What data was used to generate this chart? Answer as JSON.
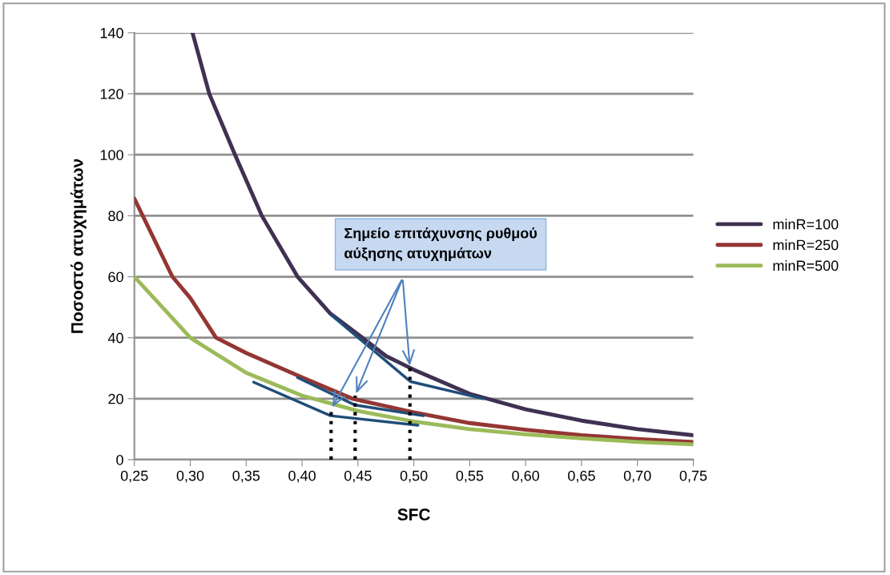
{
  "chart_data": {
    "type": "line",
    "xlabel": "SFC",
    "ylabel": "Ποσοστό ατυχημάτων",
    "xlim": [
      0.25,
      0.75
    ],
    "ylim": [
      0,
      140
    ],
    "xticks": [
      {
        "value": 0.25,
        "label": "0,25"
      },
      {
        "value": 0.3,
        "label": "0,30"
      },
      {
        "value": 0.35,
        "label": "0,35"
      },
      {
        "value": 0.4,
        "label": "0,40"
      },
      {
        "value": 0.45,
        "label": "0,45"
      },
      {
        "value": 0.5,
        "label": "0,50"
      },
      {
        "value": 0.55,
        "label": "0,55"
      },
      {
        "value": 0.6,
        "label": "0,60"
      },
      {
        "value": 0.65,
        "label": "0,65"
      },
      {
        "value": 0.7,
        "label": "0,70"
      },
      {
        "value": 0.75,
        "label": "0,75"
      }
    ],
    "yticks": [
      0,
      20,
      40,
      60,
      80,
      100,
      120,
      140
    ],
    "grid": "y",
    "legend": "right",
    "marker": "none",
    "line_style": "solid",
    "series": [
      {
        "name": "minR=100",
        "color": "#403152",
        "x": [
          0.302,
          0.317,
          0.34,
          0.364,
          0.396,
          0.425,
          0.454,
          0.475,
          0.5,
          0.55,
          0.6,
          0.65,
          0.7,
          0.75
        ],
        "values": [
          140,
          120,
          100,
          80,
          60,
          48,
          40,
          34,
          29.5,
          21.6,
          16.5,
          12.8,
          10,
          8
        ]
      },
      {
        "name": "minR=250",
        "color": "#943634",
        "x": [
          0.25,
          0.284,
          0.3,
          0.323,
          0.35,
          0.4,
          0.445,
          0.5,
          0.55,
          0.6,
          0.65,
          0.7,
          0.75
        ],
        "values": [
          85.6,
          60,
          53,
          40,
          35,
          27,
          20,
          15.5,
          12,
          9.8,
          8,
          6.8,
          5.8
        ]
      },
      {
        "name": "minR=500",
        "color": "#9bbb59",
        "x": [
          0.25,
          0.3,
          0.35,
          0.4,
          0.45,
          0.5,
          0.55,
          0.6,
          0.65,
          0.7,
          0.75
        ],
        "values": [
          60,
          40,
          28.5,
          21,
          16,
          12.5,
          10,
          8.3,
          7,
          5.8,
          5
        ]
      },
      {
        "color": "#1f4e79",
        "x": [
          0.426,
          0.497,
          0.562
        ],
        "values": [
          47.5,
          25.6,
          20
        ]
      },
      {
        "color": "#1f4e79",
        "x": [
          0.396,
          0.4475,
          0.5085
        ],
        "values": [
          26.9,
          17.9,
          14.4
        ]
      },
      {
        "color": "#1f4e79",
        "x": [
          0.3567,
          0.4255,
          0.5036
        ],
        "values": [
          25.4,
          14.4,
          11.3
        ]
      },
      {
        "color": "#000000",
        "line_style": "dotted",
        "x": [
          0.426,
          0.426
        ],
        "values": [
          0,
          16.5
        ]
      },
      {
        "color": "#000000",
        "line_style": "dotted",
        "x": [
          0.4475,
          0.4475
        ],
        "values": [
          0,
          21
        ]
      },
      {
        "color": "#000000",
        "line_style": "dotted",
        "x": [
          0.4965,
          0.4965
        ],
        "values": [
          0,
          30
        ]
      }
    ],
    "annotations": [
      "Σημείο επιτάχυνσης ρυθμού\nαύξησης ατυχημάτων"
    ]
  }
}
